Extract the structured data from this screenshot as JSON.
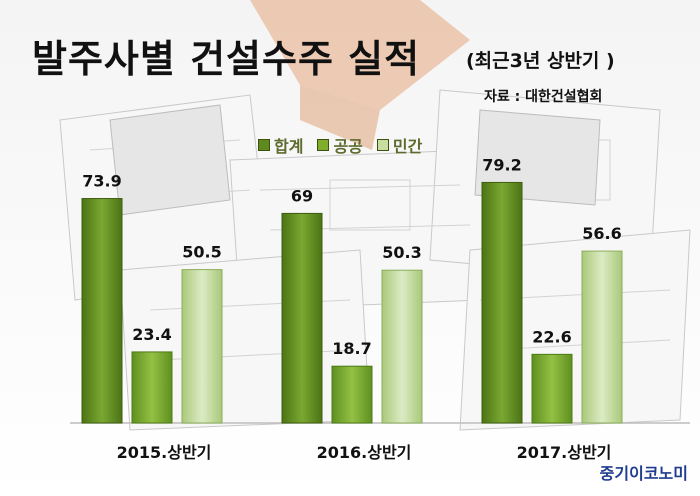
{
  "header": {
    "title": "발주사별 건설수주 실적",
    "subtitle": "(최근3년 상반기 )",
    "source": "자료 : 대한건설협회"
  },
  "branding": {
    "logo_text": "중기이코노미"
  },
  "colors": {
    "total": "#5f8a1e",
    "public": "#7fae2c",
    "private": "#c7dea0",
    "brand": "#1f3c8f"
  },
  "chart_data": {
    "type": "bar",
    "categories": [
      "2015.상반기",
      "2016.상반기",
      "2017.상반기"
    ],
    "series": [
      {
        "name": "합계",
        "values": [
          73.9,
          69,
          79.2
        ]
      },
      {
        "name": "공공",
        "values": [
          23.4,
          18.7,
          22.6
        ]
      },
      {
        "name": "민간",
        "values": [
          50.5,
          50.3,
          56.6
        ]
      }
    ],
    "title": "발주사별 건설수주 실적",
    "ylim": [
      0,
      80
    ],
    "grid": false,
    "legend_position": "top"
  }
}
